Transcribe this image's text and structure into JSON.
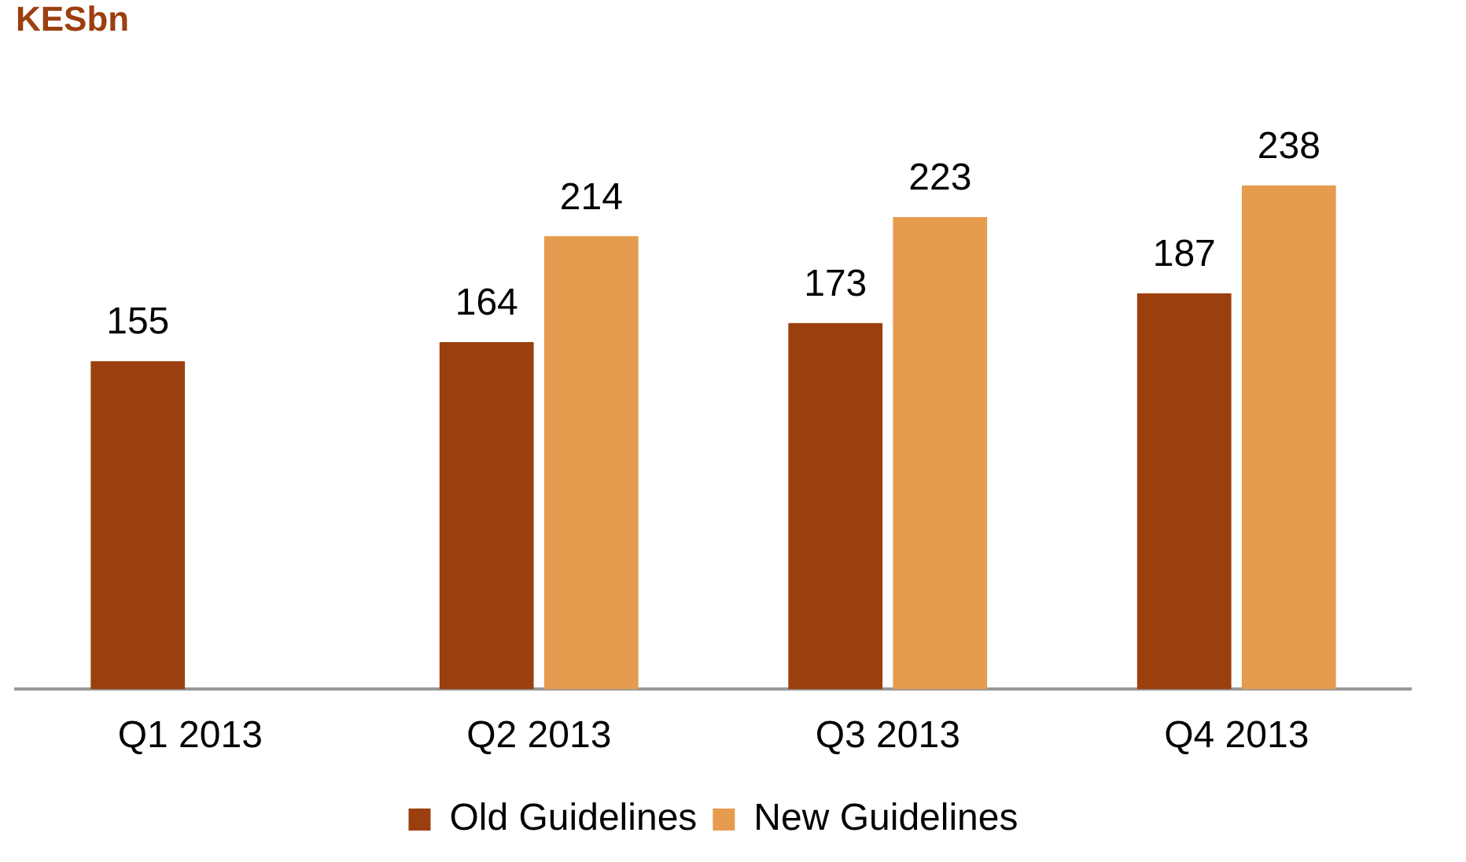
{
  "chart_data": {
    "type": "bar",
    "title": "KESbn",
    "categories": [
      "Q1 2013",
      "Q2 2013",
      "Q3 2013",
      "Q4 2013"
    ],
    "series": [
      {
        "name": "Old Guidelines",
        "color": "#9c3f0e",
        "values": [
          155,
          164,
          173,
          187
        ]
      },
      {
        "name": "New Guidelines",
        "color": "#e59c4e",
        "values": [
          null,
          214,
          223,
          238
        ]
      }
    ],
    "tick_labels": "x",
    "data_labels": true,
    "legend": "bottom",
    "grid": false
  }
}
